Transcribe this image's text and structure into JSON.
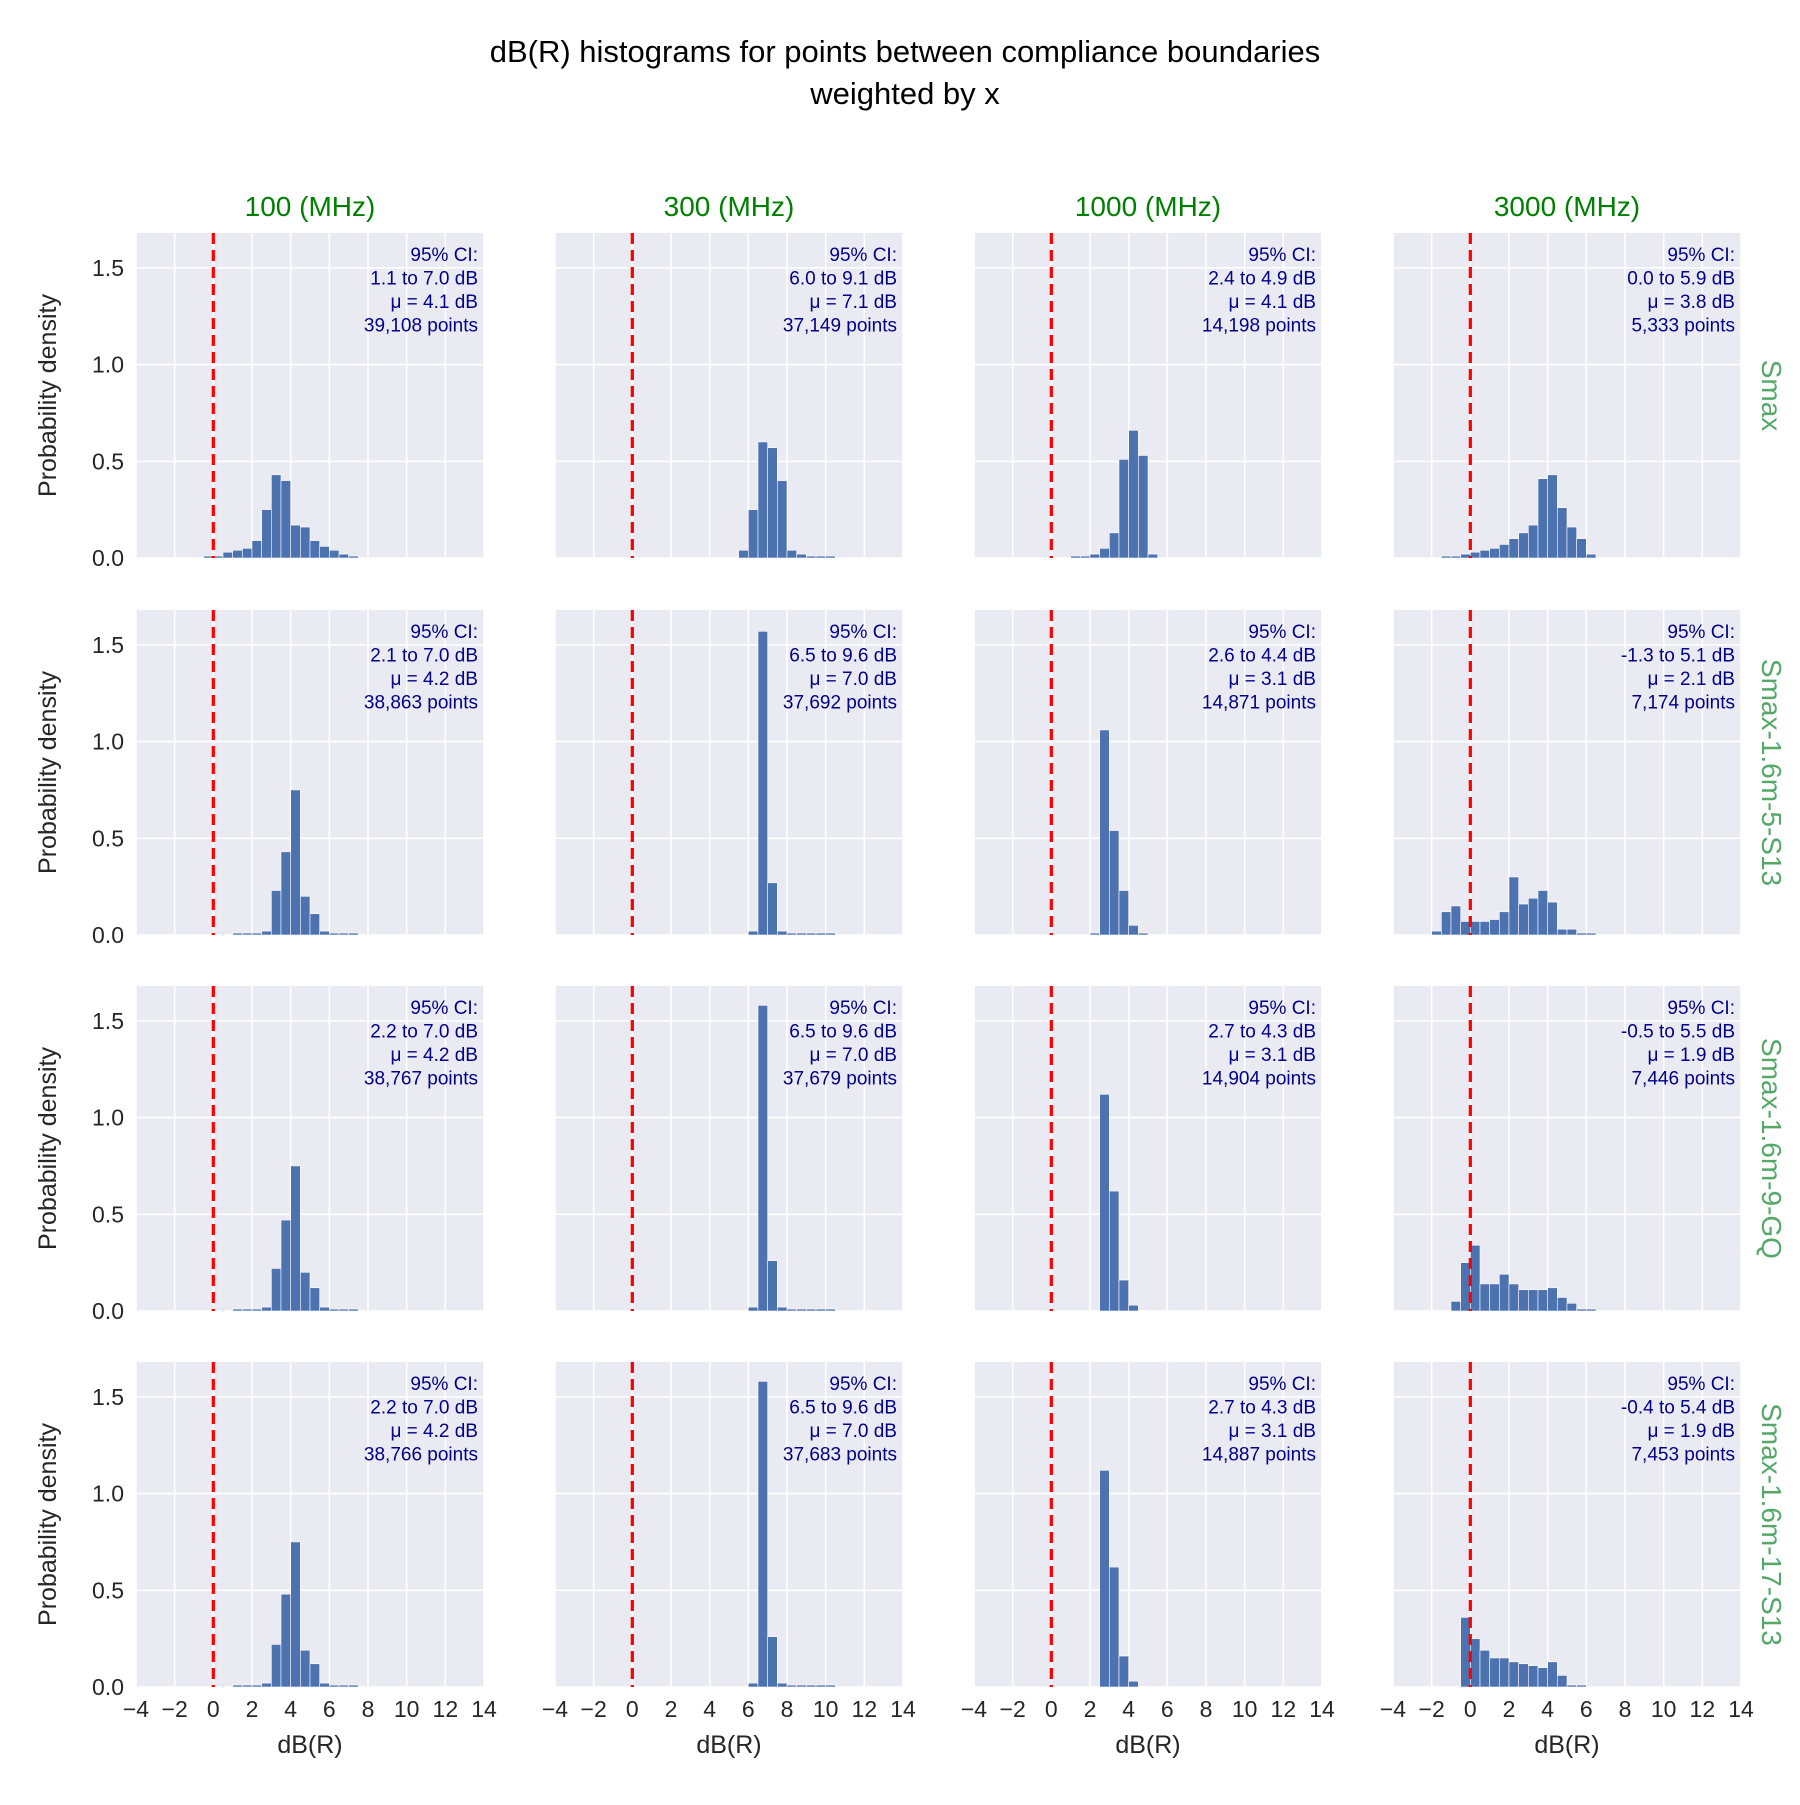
{
  "title_line1": "dB(R) histograms for points between compliance boundaries",
  "title_line2": "weighted by x",
  "x_axis_label": "dB(R)",
  "y_axis_label": "Probability density",
  "colors": {
    "bar": "#4c72b0",
    "vline": "#ff0000",
    "col_title": "#008000",
    "row_label": "#55a868",
    "annotation": "#00008b",
    "panel_bg": "#eaeaf2",
    "grid": "#ffffff"
  },
  "columns": [
    "100 (MHz)",
    "300 (MHz)",
    "1000 (MHz)",
    "3000 (MHz)"
  ],
  "rows": [
    "Smax",
    "Smax-1.6m-5-S13",
    "Smax-1.6m-9-GQ",
    "Smax-1.6m-17-S13"
  ],
  "chart_data": {
    "type": "bar",
    "subtype": "histogram-grid",
    "x_range": [
      -4,
      14
    ],
    "y_range": [
      0,
      1.68
    ],
    "x_ticks": [
      "−4",
      "−2",
      "0",
      "2",
      "4",
      "6",
      "8",
      "10",
      "12",
      "14"
    ],
    "y_ticks": [
      "0.0",
      "0.5",
      "1.0",
      "1.5"
    ],
    "reference_line_x": 0,
    "bin_width": 0.5,
    "panels": [
      {
        "row": 0,
        "col": 0,
        "bin_start": -0.5,
        "values": [
          0.01,
          0.01,
          0.03,
          0.04,
          0.05,
          0.09,
          0.25,
          0.43,
          0.4,
          0.17,
          0.16,
          0.09,
          0.06,
          0.04,
          0.02,
          0.01
        ],
        "annotation": [
          "95% CI:",
          "1.1 to 7.0 dB",
          "μ = 4.1 dB",
          "39,108 points"
        ]
      },
      {
        "row": 0,
        "col": 1,
        "bin_start": 5.5,
        "values": [
          0.04,
          0.25,
          0.6,
          0.57,
          0.4,
          0.04,
          0.02,
          0.01,
          0.01,
          0.01
        ],
        "annotation": [
          "95% CI:",
          "6.0 to 9.1 dB",
          "μ = 7.1 dB",
          "37,149 points"
        ]
      },
      {
        "row": 0,
        "col": 2,
        "bin_start": 1.0,
        "values": [
          0.01,
          0.01,
          0.02,
          0.05,
          0.13,
          0.51,
          0.66,
          0.53,
          0.02
        ],
        "annotation": [
          "95% CI:",
          "2.4 to 4.9 dB",
          "μ = 4.1 dB",
          "14,198 points"
        ]
      },
      {
        "row": 0,
        "col": 3,
        "bin_start": -1.5,
        "values": [
          0.01,
          0.01,
          0.02,
          0.03,
          0.04,
          0.05,
          0.07,
          0.1,
          0.13,
          0.17,
          0.41,
          0.43,
          0.26,
          0.16,
          0.1,
          0.02
        ],
        "annotation": [
          "95% CI:",
          "0.0 to 5.9 dB",
          "μ = 3.8 dB",
          "5,333 points"
        ]
      },
      {
        "row": 1,
        "col": 0,
        "bin_start": 1.0,
        "values": [
          0.01,
          0.01,
          0.01,
          0.02,
          0.23,
          0.43,
          0.75,
          0.2,
          0.11,
          0.02,
          0.01,
          0.01,
          0.01
        ],
        "annotation": [
          "95% CI:",
          "2.1 to 7.0 dB",
          "μ = 4.2 dB",
          "38,863 points"
        ]
      },
      {
        "row": 1,
        "col": 1,
        "bin_start": 6.0,
        "values": [
          0.02,
          1.57,
          0.27,
          0.02,
          0.01,
          0.01,
          0.01,
          0.01,
          0.01
        ],
        "annotation": [
          "95% CI:",
          "6.5 to 9.6 dB",
          "μ = 7.0 dB",
          "37,692 points"
        ]
      },
      {
        "row": 1,
        "col": 2,
        "bin_start": 2.0,
        "values": [
          0.01,
          1.06,
          0.54,
          0.23,
          0.05,
          0.01
        ],
        "annotation": [
          "95% CI:",
          "2.6 to 4.4 dB",
          "μ = 3.1 dB",
          "14,871 points"
        ]
      },
      {
        "row": 1,
        "col": 3,
        "bin_start": -2.0,
        "values": [
          0.02,
          0.12,
          0.15,
          0.07,
          0.07,
          0.07,
          0.08,
          0.12,
          0.3,
          0.16,
          0.19,
          0.23,
          0.17,
          0.03,
          0.03,
          0.01,
          0.01
        ],
        "annotation": [
          "95% CI:",
          "-1.3 to 5.1 dB",
          "μ = 2.1 dB",
          "7,174 points"
        ]
      },
      {
        "row": 2,
        "col": 0,
        "bin_start": 1.0,
        "values": [
          0.01,
          0.01,
          0.01,
          0.02,
          0.22,
          0.47,
          0.75,
          0.2,
          0.12,
          0.02,
          0.01,
          0.01,
          0.01
        ],
        "annotation": [
          "95% CI:",
          "2.2 to 7.0 dB",
          "μ = 4.2 dB",
          "38,767 points"
        ]
      },
      {
        "row": 2,
        "col": 1,
        "bin_start": 6.0,
        "values": [
          0.02,
          1.58,
          0.26,
          0.02,
          0.01,
          0.01,
          0.01,
          0.01,
          0.01
        ],
        "annotation": [
          "95% CI:",
          "6.5 to 9.6 dB",
          "μ = 7.0 dB",
          "37,679 points"
        ]
      },
      {
        "row": 2,
        "col": 2,
        "bin_start": 2.5,
        "values": [
          1.12,
          0.62,
          0.16,
          0.03
        ],
        "annotation": [
          "95% CI:",
          "2.7 to 4.3 dB",
          "μ = 3.1 dB",
          "14,904 points"
        ]
      },
      {
        "row": 2,
        "col": 3,
        "bin_start": -1.0,
        "values": [
          0.05,
          0.25,
          0.34,
          0.14,
          0.14,
          0.19,
          0.14,
          0.11,
          0.11,
          0.11,
          0.12,
          0.07,
          0.04,
          0.01,
          0.01
        ],
        "annotation": [
          "95% CI:",
          "-0.5 to 5.5 dB",
          "μ = 1.9 dB",
          "7,446 points"
        ]
      },
      {
        "row": 3,
        "col": 0,
        "bin_start": 1.0,
        "values": [
          0.01,
          0.01,
          0.01,
          0.02,
          0.22,
          0.48,
          0.75,
          0.19,
          0.12,
          0.02,
          0.01,
          0.01,
          0.01
        ],
        "annotation": [
          "95% CI:",
          "2.2 to 7.0 dB",
          "μ = 4.2 dB",
          "38,766 points"
        ]
      },
      {
        "row": 3,
        "col": 1,
        "bin_start": 6.0,
        "values": [
          0.02,
          1.58,
          0.26,
          0.02,
          0.01,
          0.01,
          0.01,
          0.01,
          0.01
        ],
        "annotation": [
          "95% CI:",
          "6.5 to 9.6 dB",
          "μ = 7.0 dB",
          "37,683 points"
        ]
      },
      {
        "row": 3,
        "col": 2,
        "bin_start": 2.5,
        "values": [
          1.12,
          0.62,
          0.16,
          0.03
        ],
        "annotation": [
          "95% CI:",
          "2.7 to 4.3 dB",
          "μ = 3.1 dB",
          "14,887 points"
        ]
      },
      {
        "row": 3,
        "col": 3,
        "bin_start": -0.5,
        "values": [
          0.36,
          0.25,
          0.19,
          0.15,
          0.15,
          0.13,
          0.12,
          0.11,
          0.1,
          0.13,
          0.06,
          0.01,
          0.01
        ],
        "annotation": [
          "95% CI:",
          "-0.4 to 5.4 dB",
          "μ = 1.9 dB",
          "7,453 points"
        ]
      }
    ]
  }
}
